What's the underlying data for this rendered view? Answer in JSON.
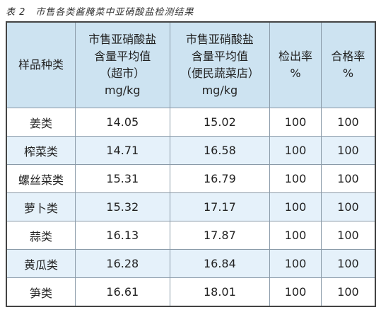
{
  "caption": "表 2　市售各类酱腌菜中亚硝酸盐检测结果",
  "table": {
    "header": [
      [
        "样品种类"
      ],
      [
        "市售亚硝酸盐",
        "含量平均值",
        "（超市）",
        "mg/kg"
      ],
      [
        "市售亚硝酸盐",
        "含量平均值",
        "（便民蔬菜店）",
        "mg/kg"
      ],
      [
        "检出率",
        "%"
      ],
      [
        "合格率",
        "%"
      ]
    ],
    "rows": [
      [
        "姜类",
        "14.05",
        "15.02",
        "100",
        "100"
      ],
      [
        "榨菜类",
        "14.71",
        "16.58",
        "100",
        "100"
      ],
      [
        "螺丝菜类",
        "15.31",
        "16.79",
        "100",
        "100"
      ],
      [
        "萝卜类",
        "15.32",
        "17.17",
        "100",
        "100"
      ],
      [
        "蒜类",
        "16.13",
        "17.87",
        "100",
        "100"
      ],
      [
        "黄瓜类",
        "16.28",
        "16.84",
        "100",
        "100"
      ],
      [
        "笋类",
        "16.61",
        "18.01",
        "100",
        "100"
      ]
    ]
  }
}
